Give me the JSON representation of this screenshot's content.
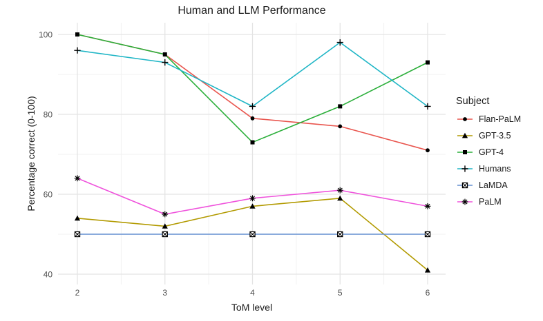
{
  "chart_data": {
    "type": "line",
    "title": "Human and LLM Performance",
    "xlabel": "ToM level",
    "ylabel": "Percentage correct (0-100)",
    "legend_title": "Subject",
    "legend_position": "right",
    "grid": true,
    "x": [
      2,
      3,
      4,
      5,
      6
    ],
    "x_ticks": [
      2,
      3,
      4,
      5,
      6
    ],
    "x_minor": [
      2.5,
      3.5,
      4.5,
      5.5
    ],
    "y_ticks": [
      40,
      60,
      80,
      100
    ],
    "y_minor": [
      50,
      70,
      90
    ],
    "xlim": [
      2,
      6
    ],
    "ylim": [
      40,
      100
    ],
    "marker_color": "#000000",
    "grid_major_color": "#e4e4e4",
    "grid_minor_color": "#f1f1f1",
    "series": [
      {
        "name": "Flan-PaLM",
        "color": "#e9564f",
        "marker": "circle",
        "values": [
          100,
          95,
          79,
          77,
          71
        ]
      },
      {
        "name": "GPT-3.5",
        "color": "#b29a00",
        "marker": "triangle",
        "values": [
          54,
          52,
          57,
          59,
          41
        ]
      },
      {
        "name": "GPT-4",
        "color": "#2baf3a",
        "marker": "square",
        "values": [
          100,
          95,
          73,
          82,
          93
        ]
      },
      {
        "name": "Humans",
        "color": "#20b6c6",
        "marker": "plus",
        "values": [
          96,
          93,
          82,
          98,
          82
        ]
      },
      {
        "name": "LaMDA",
        "color": "#648fd1",
        "marker": "square-x",
        "values": [
          50,
          50,
          50,
          50,
          50
        ]
      },
      {
        "name": "PaLM",
        "color": "#ef53dc",
        "marker": "asterisk",
        "values": [
          64,
          55,
          59,
          61,
          57
        ]
      }
    ]
  }
}
